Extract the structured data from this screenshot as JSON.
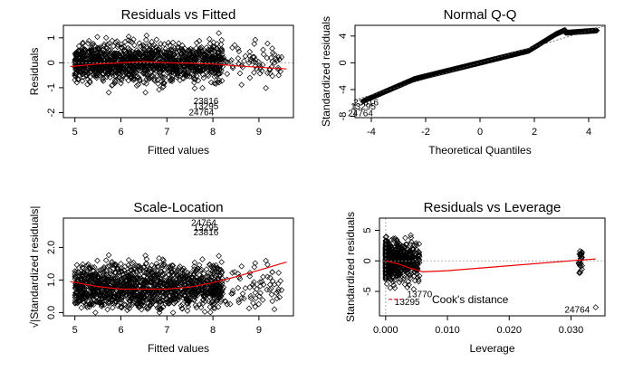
{
  "chart_data": [
    {
      "type": "scatter",
      "title": "Residuals vs Fitted",
      "xlabel": "Fitted values",
      "ylabel": "Residuals",
      "xlim": [
        4.75,
        9.75
      ],
      "ylim": [
        -2.2,
        1.5
      ],
      "xticks": [
        "5",
        "6",
        "7",
        "8",
        "9"
      ],
      "yticks": [
        "-2",
        "-1",
        "0",
        "1"
      ],
      "reference_line": 0,
      "smoother": {
        "x": [
          4.9,
          5.5,
          6.0,
          6.5,
          7.0,
          7.5,
          8.0,
          8.5,
          9.0,
          9.6
        ],
        "y": [
          -0.15,
          -0.05,
          0.0,
          0.05,
          0.0,
          -0.02,
          -0.05,
          -0.12,
          -0.18,
          -0.25
        ]
      },
      "labeled_points": [
        {
          "label": "23816",
          "x": 7.85,
          "y": -1.55
        },
        {
          "label": "13295",
          "x": 7.85,
          "y": -1.75
        },
        {
          "label": "24764",
          "x": 7.75,
          "y": -2.0
        }
      ]
    },
    {
      "type": "scatter",
      "title": "Normal Q-Q",
      "xlabel": "Theoretical Quantiles",
      "ylabel": "Standardized residuals",
      "xlim": [
        -4.6,
        4.6
      ],
      "ylim": [
        -8.2,
        5.6
      ],
      "xticks": [
        "-4",
        "-2",
        "0",
        "2",
        "4"
      ],
      "yticks": [
        "-8",
        "-4",
        "0",
        "4"
      ],
      "reference_line": {
        "slope": 1.2,
        "intercept": 0
      },
      "labeled_points": [
        {
          "label": "23816",
          "x": -4.2,
          "y": -6.0
        },
        {
          "label": "13295",
          "x": -4.3,
          "y": -6.6
        },
        {
          "label": "24764",
          "x": -4.4,
          "y": -7.6
        }
      ]
    },
    {
      "type": "scatter",
      "title": "Scale-Location",
      "xlabel": "Fitted values",
      "ylabel": "√|Standardized residuals|",
      "xlim": [
        4.75,
        9.75
      ],
      "ylim": [
        -0.1,
        2.9
      ],
      "xticks": [
        "5",
        "6",
        "7",
        "8",
        "9"
      ],
      "yticks": [
        "0.0",
        "1.0",
        "2.0"
      ],
      "smoother": {
        "x": [
          4.9,
          5.5,
          6.0,
          6.5,
          7.0,
          7.5,
          8.0,
          8.5,
          9.0,
          9.6
        ],
        "y": [
          0.95,
          0.8,
          0.72,
          0.72,
          0.72,
          0.78,
          0.92,
          1.1,
          1.3,
          1.55
        ]
      },
      "labeled_points": [
        {
          "label": "24764",
          "x": 7.8,
          "y": 2.75
        },
        {
          "label": "13295",
          "x": 7.85,
          "y": 2.6
        },
        {
          "label": "23816",
          "x": 7.85,
          "y": 2.45
        }
      ]
    },
    {
      "type": "scatter",
      "title": "Residuals vs Leverage",
      "xlabel": "Leverage",
      "ylabel": "Standardized residuals",
      "xlim": [
        -0.001,
        0.0355
      ],
      "ylim": [
        -9,
        7
      ],
      "xticks": [
        "0.000",
        "0.010",
        "0.020",
        "0.030"
      ],
      "yticks": [
        "-5",
        "0",
        "5"
      ],
      "reference_line": 0,
      "smoother": {
        "x": [
          0.0,
          0.002,
          0.004,
          0.006,
          0.01,
          0.02,
          0.031,
          0.034
        ],
        "y": [
          0.0,
          -0.5,
          -1.2,
          -1.8,
          -1.6,
          -0.8,
          0.1,
          0.3
        ]
      },
      "legend": "Cook's distance",
      "labeled_points": [
        {
          "label": "13770",
          "x": 0.0055,
          "y": -5.5
        },
        {
          "label": "13295",
          "x": 0.0035,
          "y": -6.8
        },
        {
          "label": "24764",
          "x": 0.031,
          "y": -8.0
        }
      ]
    }
  ]
}
